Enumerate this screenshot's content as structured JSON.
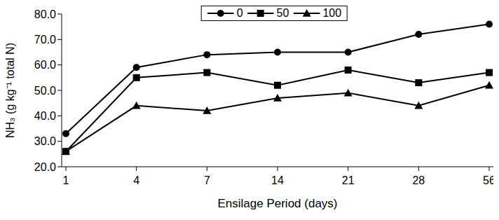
{
  "chart_data": {
    "type": "line",
    "x_label": "Ensilage Period (days)",
    "y_label": "NH₃ (g kg⁻¹ total N)",
    "categories": [
      "1",
      "4",
      "7",
      "14",
      "21",
      "28",
      "56"
    ],
    "series": [
      {
        "name": "0",
        "color": "#000000",
        "marker": "circle",
        "values": [
          33,
          59,
          64,
          65,
          65,
          72,
          76
        ]
      },
      {
        "name": "50",
        "color": "#000000",
        "marker": "square",
        "values": [
          26,
          55,
          57,
          52,
          58,
          53,
          57
        ]
      },
      {
        "name": "100",
        "color": "#000000",
        "marker": "triangle",
        "values": [
          26,
          44,
          42,
          47,
          49,
          44,
          52
        ]
      }
    ],
    "ylim": [
      20,
      80
    ],
    "yticks": [
      {
        "value": 20,
        "label": "20.0"
      },
      {
        "value": 30,
        "label": "30.0"
      },
      {
        "value": 40,
        "label": "40.0"
      },
      {
        "value": 50,
        "label": "50.0"
      },
      {
        "value": 60,
        "label": "60.0"
      },
      {
        "value": 70,
        "label": "70.0"
      },
      {
        "value": 80,
        "label": "80.0"
      }
    ],
    "grid": false,
    "legend": "top"
  }
}
